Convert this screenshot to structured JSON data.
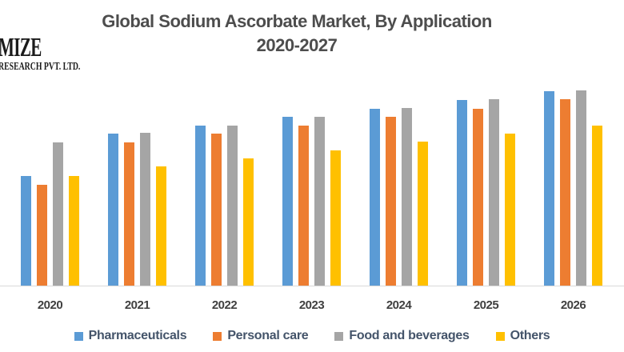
{
  "logo": {
    "line1": "MIZE",
    "line2": "RESEARCH PVT. LTD."
  },
  "colors": {
    "background": "#FFFFFF",
    "title_text": "#4D4D4D",
    "axis_label_text": "#404040",
    "legend_text": "#44546A",
    "axis_line": "#D9D9D9",
    "logo_text": "#1B1B1B",
    "series_blue": "#5B9BD5",
    "series_orange": "#ED7D31",
    "series_gray": "#A5A5A5",
    "series_yellow": "#FFC000"
  },
  "chart_data": {
    "type": "bar",
    "title": "Global Sodium Ascorbate Market, By Application",
    "subtitle": "2020-2027",
    "categories": [
      "2020",
      "2021",
      "2022",
      "2023",
      "2024",
      "2025",
      "2026"
    ],
    "series": [
      {
        "name": "Pharmaceuticals",
        "color": "#5B9BD5",
        "values": [
          137,
          190,
          200,
          211,
          221,
          232,
          243
        ]
      },
      {
        "name": "Personal care",
        "color": "#ED7D31",
        "values": [
          126,
          179,
          190,
          200,
          211,
          221,
          233
        ]
      },
      {
        "name": "Food and beverages",
        "color": "#A5A5A5",
        "values": [
          179,
          191,
          200,
          211,
          222,
          233,
          244
        ]
      },
      {
        "name": "Others",
        "color": "#FFC000",
        "values": [
          137,
          149,
          159,
          169,
          180,
          190,
          200
        ]
      }
    ],
    "units": "relative bar height in pixels (chart displays no value axis or data labels)",
    "value_axis_visible": false,
    "gridlines": false,
    "legend_position": "bottom",
    "xlabel": "",
    "ylabel": ""
  }
}
